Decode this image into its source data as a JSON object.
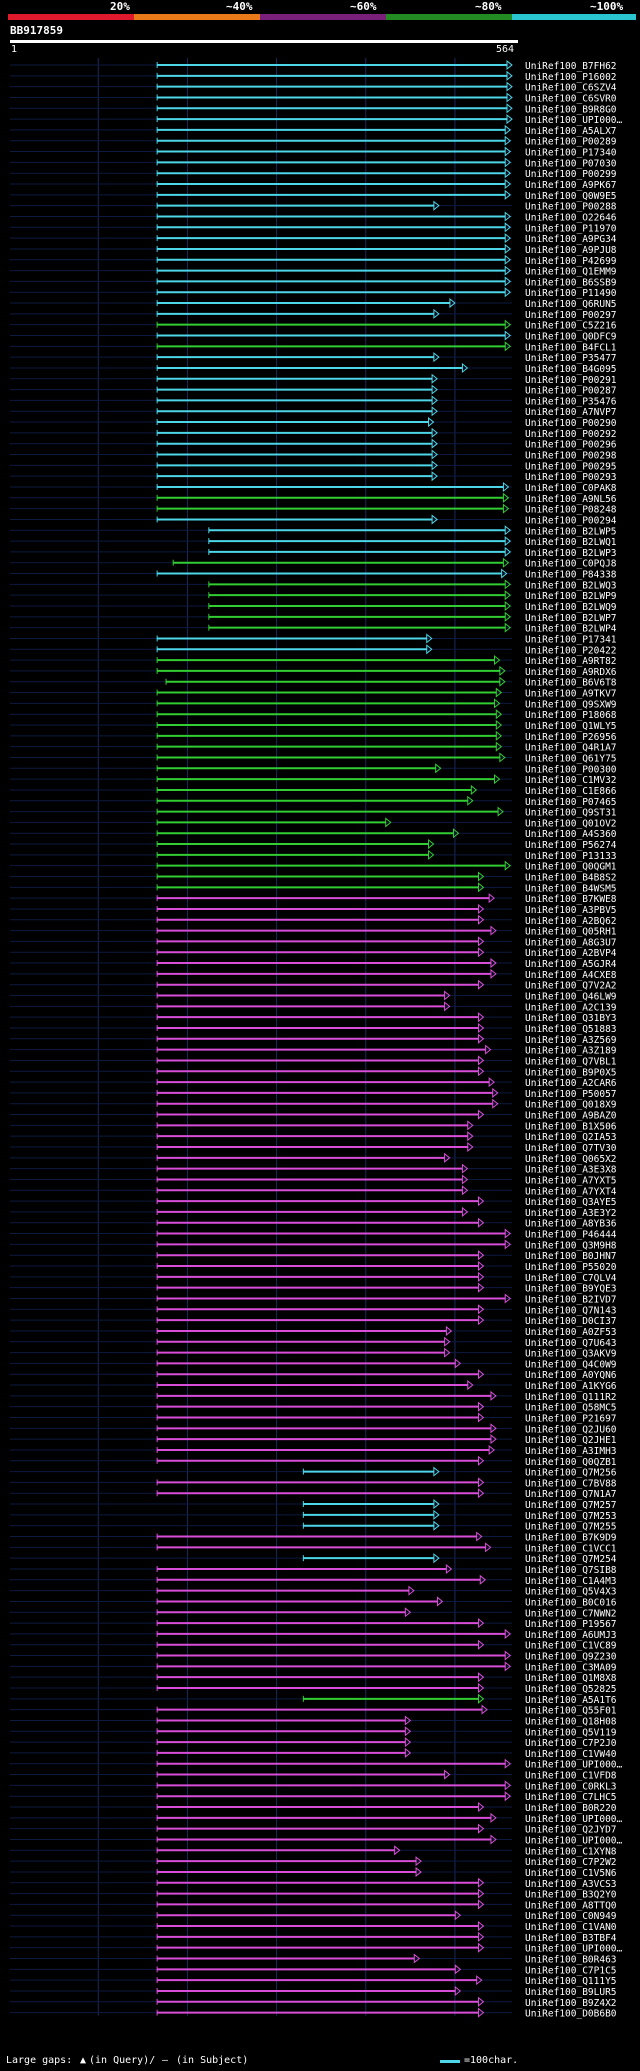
{
  "legend": {
    "labels": [
      "20%",
      "~40%",
      "~60%",
      "~80%",
      "~100%"
    ],
    "colors": [
      "#e0192c",
      "#e97a1a",
      "#7a1f7a",
      "#228b22",
      "#29c6d2"
    ]
  },
  "query": {
    "id": "BB917859",
    "start": "1",
    "end": "564",
    "length": 564
  },
  "hit_colors": {
    "cyan": "#4cd6e8",
    "green": "#32cd32",
    "magenta": "#d94ed9"
  },
  "hits": [
    {
      "id": "UniRef100_B7FH62",
      "start": 166,
      "end": 564,
      "color": "cyan"
    },
    {
      "id": "UniRef100_P16002",
      "start": 166,
      "end": 564,
      "color": "cyan"
    },
    {
      "id": "UniRef100_C6SZV4",
      "start": 166,
      "end": 564,
      "color": "cyan"
    },
    {
      "id": "UniRef100_C6SVR0",
      "start": 166,
      "end": 564,
      "color": "cyan"
    },
    {
      "id": "UniRef100_B9R8G0",
      "start": 166,
      "end": 564,
      "color": "cyan"
    },
    {
      "id": "UniRef100_UPI000…",
      "start": 166,
      "end": 564,
      "color": "cyan"
    },
    {
      "id": "UniRef100_A5ALX7",
      "start": 166,
      "end": 562,
      "color": "cyan"
    },
    {
      "id": "UniRef100_P00289",
      "start": 166,
      "end": 562,
      "color": "cyan"
    },
    {
      "id": "UniRef100_P17340",
      "start": 166,
      "end": 562,
      "color": "cyan"
    },
    {
      "id": "UniRef100_P07030",
      "start": 166,
      "end": 562,
      "color": "cyan"
    },
    {
      "id": "UniRef100_P00299",
      "start": 166,
      "end": 562,
      "color": "cyan"
    },
    {
      "id": "UniRef100_A9PK67",
      "start": 166,
      "end": 562,
      "color": "cyan"
    },
    {
      "id": "UniRef100_Q0W9E5",
      "start": 166,
      "end": 562,
      "color": "cyan"
    },
    {
      "id": "UniRef100_P00288",
      "start": 166,
      "end": 482,
      "color": "cyan"
    },
    {
      "id": "UniRef100_O22646",
      "start": 166,
      "end": 562,
      "color": "cyan"
    },
    {
      "id": "UniRef100_P11970",
      "start": 166,
      "end": 562,
      "color": "cyan"
    },
    {
      "id": "UniRef100_A9PG34",
      "start": 166,
      "end": 562,
      "color": "cyan"
    },
    {
      "id": "UniRef100_A9PJU8",
      "start": 166,
      "end": 562,
      "color": "cyan"
    },
    {
      "id": "UniRef100_P42699",
      "start": 166,
      "end": 562,
      "color": "cyan"
    },
    {
      "id": "UniRef100_Q1EMM9",
      "start": 166,
      "end": 562,
      "color": "cyan"
    },
    {
      "id": "UniRef100_B6SSB9",
      "start": 166,
      "end": 562,
      "color": "cyan"
    },
    {
      "id": "UniRef100_P11490",
      "start": 166,
      "end": 562,
      "color": "cyan"
    },
    {
      "id": "UniRef100_Q6RUN5",
      "start": 166,
      "end": 500,
      "color": "cyan"
    },
    {
      "id": "UniRef100_P00297",
      "start": 166,
      "end": 482,
      "color": "cyan"
    },
    {
      "id": "UniRef100_C5Z216",
      "start": 166,
      "end": 562,
      "color": "green"
    },
    {
      "id": "UniRef100_Q0DFC9",
      "start": 166,
      "end": 562,
      "color": "cyan"
    },
    {
      "id": "UniRef100_B4FCL1",
      "start": 166,
      "end": 562,
      "color": "green"
    },
    {
      "id": "UniRef100_P35477",
      "start": 166,
      "end": 482,
      "color": "cyan"
    },
    {
      "id": "UniRef100_B4G095",
      "start": 166,
      "end": 514,
      "color": "cyan"
    },
    {
      "id": "UniRef100_P00291",
      "start": 166,
      "end": 480,
      "color": "cyan"
    },
    {
      "id": "UniRef100_P00287",
      "start": 166,
      "end": 480,
      "color": "cyan"
    },
    {
      "id": "UniRef100_P35476",
      "start": 166,
      "end": 480,
      "color": "cyan"
    },
    {
      "id": "UniRef100_A7NVP7",
      "start": 166,
      "end": 480,
      "color": "cyan"
    },
    {
      "id": "UniRef100_P00290",
      "start": 166,
      "end": 476,
      "color": "cyan"
    },
    {
      "id": "UniRef100_P00292",
      "start": 166,
      "end": 480,
      "color": "cyan"
    },
    {
      "id": "UniRef100_P00296",
      "start": 166,
      "end": 480,
      "color": "cyan"
    },
    {
      "id": "UniRef100_P00298",
      "start": 166,
      "end": 480,
      "color": "cyan"
    },
    {
      "id": "UniRef100_P00295",
      "start": 166,
      "end": 480,
      "color": "cyan"
    },
    {
      "id": "UniRef100_P00293",
      "start": 166,
      "end": 480,
      "color": "cyan"
    },
    {
      "id": "UniRef100_C0PAK8",
      "start": 166,
      "end": 560,
      "color": "cyan"
    },
    {
      "id": "UniRef100_A9NL56",
      "start": 166,
      "end": 560,
      "color": "green"
    },
    {
      "id": "UniRef100_P08248",
      "start": 166,
      "end": 560,
      "color": "green"
    },
    {
      "id": "UniRef100_P00294",
      "start": 166,
      "end": 480,
      "color": "cyan"
    },
    {
      "id": "UniRef100_B2LWP5",
      "start": 224,
      "end": 562,
      "color": "cyan"
    },
    {
      "id": "UniRef100_B2LWQ1",
      "start": 224,
      "end": 562,
      "color": "cyan"
    },
    {
      "id": "UniRef100_B2LWP3",
      "start": 224,
      "end": 562,
      "color": "cyan"
    },
    {
      "id": "UniRef100_C0PQJ8",
      "start": 184,
      "end": 560,
      "color": "green"
    },
    {
      "id": "UniRef100_P84338",
      "start": 166,
      "end": 558,
      "color": "cyan"
    },
    {
      "id": "UniRef100_B2LWQ3",
      "start": 224,
      "end": 562,
      "color": "green"
    },
    {
      "id": "UniRef100_B2LWP9",
      "start": 224,
      "end": 562,
      "color": "green"
    },
    {
      "id": "UniRef100_B2LWQ9",
      "start": 224,
      "end": 562,
      "color": "green"
    },
    {
      "id": "UniRef100_B2LWP7",
      "start": 224,
      "end": 562,
      "color": "green"
    },
    {
      "id": "UniRef100_B2LWP4",
      "start": 224,
      "end": 562,
      "color": "green"
    },
    {
      "id": "UniRef100_P17341",
      "start": 166,
      "end": 474,
      "color": "cyan"
    },
    {
      "id": "UniRef100_P20422",
      "start": 166,
      "end": 474,
      "color": "cyan"
    },
    {
      "id": "UniRef100_A9RT82",
      "start": 166,
      "end": 550,
      "color": "green"
    },
    {
      "id": "UniRef100_A9RDX6",
      "start": 166,
      "end": 556,
      "color": "green"
    },
    {
      "id": "UniRef100_B6V6T8",
      "start": 176,
      "end": 556,
      "color": "green"
    },
    {
      "id": "UniRef100_A9TKV7",
      "start": 166,
      "end": 552,
      "color": "green"
    },
    {
      "id": "UniRef100_Q9SXW9",
      "start": 166,
      "end": 550,
      "color": "green"
    },
    {
      "id": "UniRef100_P18068",
      "start": 166,
      "end": 552,
      "color": "green"
    },
    {
      "id": "UniRef100_Q1WLY5",
      "start": 166,
      "end": 552,
      "color": "green"
    },
    {
      "id": "UniRef100_P26956",
      "start": 166,
      "end": 552,
      "color": "green"
    },
    {
      "id": "UniRef100_Q4R1A7",
      "start": 166,
      "end": 552,
      "color": "green"
    },
    {
      "id": "UniRef100_Q61Y75",
      "start": 166,
      "end": 556,
      "color": "green"
    },
    {
      "id": "UniRef100_P00300",
      "start": 166,
      "end": 484,
      "color": "green"
    },
    {
      "id": "UniRef100_C1MV32",
      "start": 166,
      "end": 550,
      "color": "green"
    },
    {
      "id": "UniRef100_C1E866",
      "start": 166,
      "end": 524,
      "color": "green"
    },
    {
      "id": "UniRef100_P07465",
      "start": 166,
      "end": 520,
      "color": "green"
    },
    {
      "id": "UniRef100_Q9ST31",
      "start": 166,
      "end": 554,
      "color": "green"
    },
    {
      "id": "UniRef100_Q01OV2",
      "start": 166,
      "end": 428,
      "color": "green"
    },
    {
      "id": "UniRef100_A4S360",
      "start": 166,
      "end": 504,
      "color": "green"
    },
    {
      "id": "UniRef100_P56274",
      "start": 166,
      "end": 476,
      "color": "green"
    },
    {
      "id": "UniRef100_P13133",
      "start": 166,
      "end": 476,
      "color": "green"
    },
    {
      "id": "UniRef100_Q0QGM1",
      "start": 166,
      "end": 562,
      "color": "green"
    },
    {
      "id": "UniRef100_B4B8S2",
      "start": 166,
      "end": 532,
      "color": "green"
    },
    {
      "id": "UniRef100_B4WSM5",
      "start": 166,
      "end": 532,
      "color": "green"
    },
    {
      "id": "UniRef100_B7KWE8",
      "start": 166,
      "end": 544,
      "color": "magenta"
    },
    {
      "id": "UniRef100_A3PBV5",
      "start": 166,
      "end": 532,
      "color": "magenta"
    },
    {
      "id": "UniRef100_A2BQ62",
      "start": 166,
      "end": 532,
      "color": "magenta"
    },
    {
      "id": "UniRef100_Q05RH1",
      "start": 166,
      "end": 546,
      "color": "magenta"
    },
    {
      "id": "UniRef100_A8G3U7",
      "start": 166,
      "end": 532,
      "color": "magenta"
    },
    {
      "id": "UniRef100_A2BVP4",
      "start": 166,
      "end": 532,
      "color": "magenta"
    },
    {
      "id": "UniRef100_A5GJR4",
      "start": 166,
      "end": 546,
      "color": "magenta"
    },
    {
      "id": "UniRef100_A4CXE8",
      "start": 166,
      "end": 546,
      "color": "magenta"
    },
    {
      "id": "UniRef100_Q7V2A2",
      "start": 166,
      "end": 532,
      "color": "magenta"
    },
    {
      "id": "UniRef100_Q46LW9",
      "start": 166,
      "end": 494,
      "color": "magenta"
    },
    {
      "id": "UniRef100_A2C139",
      "start": 166,
      "end": 494,
      "color": "magenta"
    },
    {
      "id": "UniRef100_Q31BY3",
      "start": 166,
      "end": 532,
      "color": "magenta"
    },
    {
      "id": "UniRef100_Q51883",
      "start": 166,
      "end": 532,
      "color": "magenta"
    },
    {
      "id": "UniRef100_A3Z569",
      "start": 166,
      "end": 532,
      "color": "magenta"
    },
    {
      "id": "UniRef100_A3Z189",
      "start": 166,
      "end": 540,
      "color": "magenta"
    },
    {
      "id": "UniRef100_Q7VBL1",
      "start": 166,
      "end": 532,
      "color": "magenta"
    },
    {
      "id": "UniRef100_B9P0X5",
      "start": 166,
      "end": 532,
      "color": "magenta"
    },
    {
      "id": "UniRef100_A2CAR6",
      "start": 166,
      "end": 544,
      "color": "magenta"
    },
    {
      "id": "UniRef100_P50057",
      "start": 166,
      "end": 548,
      "color": "magenta"
    },
    {
      "id": "UniRef100_Q018X9",
      "start": 166,
      "end": 548,
      "color": "magenta"
    },
    {
      "id": "UniRef100_A9BAZ0",
      "start": 166,
      "end": 532,
      "color": "magenta"
    },
    {
      "id": "UniRef100_B1X506",
      "start": 166,
      "end": 520,
      "color": "magenta"
    },
    {
      "id": "UniRef100_Q2IA53",
      "start": 166,
      "end": 520,
      "color": "magenta"
    },
    {
      "id": "UniRef100_Q7TV30",
      "start": 166,
      "end": 520,
      "color": "magenta"
    },
    {
      "id": "UniRef100_Q065X2",
      "start": 166,
      "end": 494,
      "color": "magenta"
    },
    {
      "id": "UniRef100_A3E3X8",
      "start": 166,
      "end": 514,
      "color": "magenta"
    },
    {
      "id": "UniRef100_A7YXT5",
      "start": 166,
      "end": 514,
      "color": "magenta"
    },
    {
      "id": "UniRef100_A7YXT4",
      "start": 166,
      "end": 514,
      "color": "magenta"
    },
    {
      "id": "UniRef100_Q3AYE5",
      "start": 166,
      "end": 532,
      "color": "magenta"
    },
    {
      "id": "UniRef100_A3E3Y2",
      "start": 166,
      "end": 514,
      "color": "magenta"
    },
    {
      "id": "UniRef100_A8YB36",
      "start": 166,
      "end": 532,
      "color": "magenta"
    },
    {
      "id": "UniRef100_P46444",
      "start": 166,
      "end": 562,
      "color": "magenta"
    },
    {
      "id": "UniRef100_Q3M9H8",
      "start": 166,
      "end": 562,
      "color": "magenta"
    },
    {
      "id": "UniRef100_B0JHN7",
      "start": 166,
      "end": 532,
      "color": "magenta"
    },
    {
      "id": "UniRef100_P55020",
      "start": 166,
      "end": 532,
      "color": "magenta"
    },
    {
      "id": "UniRef100_C7QLV4",
      "start": 166,
      "end": 532,
      "color": "magenta"
    },
    {
      "id": "UniRef100_B9YQE3",
      "start": 166,
      "end": 532,
      "color": "magenta"
    },
    {
      "id": "UniRef100_B2IVD7",
      "start": 166,
      "end": 562,
      "color": "magenta"
    },
    {
      "id": "UniRef100_Q7N143",
      "start": 166,
      "end": 532,
      "color": "magenta"
    },
    {
      "id": "UniRef100_D0CI37",
      "start": 166,
      "end": 532,
      "color": "magenta"
    },
    {
      "id": "UniRef100_A0ZF53",
      "start": 166,
      "end": 496,
      "color": "magenta"
    },
    {
      "id": "UniRef100_Q7U643",
      "start": 166,
      "end": 494,
      "color": "magenta"
    },
    {
      "id": "UniRef100_Q3AKV9",
      "start": 166,
      "end": 494,
      "color": "magenta"
    },
    {
      "id": "UniRef100_Q4C0W9",
      "start": 166,
      "end": 506,
      "color": "magenta"
    },
    {
      "id": "UniRef100_A0YQN6",
      "start": 166,
      "end": 532,
      "color": "magenta"
    },
    {
      "id": "UniRef100_A1KYG6",
      "start": 166,
      "end": 520,
      "color": "magenta"
    },
    {
      "id": "UniRef100_Q111R2",
      "start": 166,
      "end": 546,
      "color": "magenta"
    },
    {
      "id": "UniRef100_Q58MC5",
      "start": 166,
      "end": 532,
      "color": "magenta"
    },
    {
      "id": "UniRef100_P21697",
      "start": 166,
      "end": 532,
      "color": "magenta"
    },
    {
      "id": "UniRef100_Q2JU60",
      "start": 166,
      "end": 546,
      "color": "magenta"
    },
    {
      "id": "UniRef100_Q2JHE1",
      "start": 166,
      "end": 546,
      "color": "magenta"
    },
    {
      "id": "UniRef100_A3IMH3",
      "start": 166,
      "end": 544,
      "color": "magenta"
    },
    {
      "id": "UniRef100_Q0QZB1",
      "start": 166,
      "end": 532,
      "color": "magenta"
    },
    {
      "id": "UniRef100_Q7M256",
      "start": 330,
      "end": 482,
      "color": "cyan"
    },
    {
      "id": "UniRef100_C7BV88",
      "start": 166,
      "end": 532,
      "color": "magenta"
    },
    {
      "id": "UniRef100_Q7N1A7",
      "start": 166,
      "end": 532,
      "color": "magenta"
    },
    {
      "id": "UniRef100_Q7M257",
      "start": 330,
      "end": 482,
      "color": "cyan"
    },
    {
      "id": "UniRef100_Q7M253",
      "start": 330,
      "end": 482,
      "color": "cyan"
    },
    {
      "id": "UniRef100_Q7M255",
      "start": 330,
      "end": 482,
      "color": "cyan"
    },
    {
      "id": "UniRef100_B7K9D9",
      "start": 166,
      "end": 530,
      "color": "magenta"
    },
    {
      "id": "UniRef100_C1VCC1",
      "start": 166,
      "end": 540,
      "color": "magenta"
    },
    {
      "id": "UniRef100_Q7M254",
      "start": 330,
      "end": 482,
      "color": "cyan"
    },
    {
      "id": "UniRef100_Q7SIB8",
      "start": 166,
      "end": 496,
      "color": "magenta"
    },
    {
      "id": "UniRef100_C1A4M3",
      "start": 166,
      "end": 534,
      "color": "magenta"
    },
    {
      "id": "UniRef100_Q5V4X3",
      "start": 166,
      "end": 454,
      "color": "magenta"
    },
    {
      "id": "UniRef100_B0C016",
      "start": 166,
      "end": 486,
      "color": "magenta"
    },
    {
      "id": "UniRef100_C7NWN2",
      "start": 166,
      "end": 450,
      "color": "magenta"
    },
    {
      "id": "UniRef100_P19567",
      "start": 166,
      "end": 532,
      "color": "magenta"
    },
    {
      "id": "UniRef100_A6UMJ3",
      "start": 166,
      "end": 562,
      "color": "magenta"
    },
    {
      "id": "UniRef100_C1VC89",
      "start": 166,
      "end": 532,
      "color": "magenta"
    },
    {
      "id": "UniRef100_Q9Z230",
      "start": 166,
      "end": 562,
      "color": "magenta"
    },
    {
      "id": "UniRef100_C3MA09",
      "start": 166,
      "end": 562,
      "color": "magenta"
    },
    {
      "id": "UniRef100_Q1M8X8",
      "start": 166,
      "end": 532,
      "color": "magenta"
    },
    {
      "id": "UniRef100_Q52825",
      "start": 166,
      "end": 532,
      "color": "magenta"
    },
    {
      "id": "UniRef100_A5A1T6",
      "start": 330,
      "end": 532,
      "color": "green"
    },
    {
      "id": "UniRef100_Q55F01",
      "start": 166,
      "end": 536,
      "color": "magenta"
    },
    {
      "id": "UniRef100_Q18H08",
      "start": 166,
      "end": 450,
      "color": "magenta"
    },
    {
      "id": "UniRef100_Q5V119",
      "start": 166,
      "end": 450,
      "color": "magenta"
    },
    {
      "id": "UniRef100_C7P2J0",
      "start": 166,
      "end": 450,
      "color": "magenta"
    },
    {
      "id": "UniRef100_C1VW40",
      "start": 166,
      "end": 450,
      "color": "magenta"
    },
    {
      "id": "UniRef100_UPI000…",
      "start": 166,
      "end": 562,
      "color": "magenta"
    },
    {
      "id": "UniRef100_C1VFD8",
      "start": 166,
      "end": 494,
      "color": "magenta"
    },
    {
      "id": "UniRef100_C0RKL3",
      "start": 166,
      "end": 562,
      "color": "magenta"
    },
    {
      "id": "UniRef100_C7LHC5",
      "start": 166,
      "end": 562,
      "color": "magenta"
    },
    {
      "id": "UniRef100_B0R220",
      "start": 166,
      "end": 532,
      "color": "magenta"
    },
    {
      "id": "UniRef100_UPI000…",
      "start": 166,
      "end": 546,
      "color": "magenta"
    },
    {
      "id": "UniRef100_Q2JYD7",
      "start": 166,
      "end": 532,
      "color": "magenta"
    },
    {
      "id": "UniRef100_UPI000…",
      "start": 166,
      "end": 546,
      "color": "magenta"
    },
    {
      "id": "UniRef100_C1XYN8",
      "start": 166,
      "end": 438,
      "color": "magenta"
    },
    {
      "id": "UniRef100_C7P2W2",
      "start": 166,
      "end": 462,
      "color": "magenta"
    },
    {
      "id": "UniRef100_C1V5N6",
      "start": 166,
      "end": 462,
      "color": "magenta"
    },
    {
      "id": "UniRef100_A3VCS3",
      "start": 166,
      "end": 532,
      "color": "magenta"
    },
    {
      "id": "UniRef100_B3Q2Y0",
      "start": 166,
      "end": 532,
      "color": "magenta"
    },
    {
      "id": "UniRef100_A8TTQ0",
      "start": 166,
      "end": 532,
      "color": "magenta"
    },
    {
      "id": "UniRef100_C0N949",
      "start": 166,
      "end": 506,
      "color": "magenta"
    },
    {
      "id": "UniRef100_C1VAN0",
      "start": 166,
      "end": 532,
      "color": "magenta"
    },
    {
      "id": "UniRef100_B3TBF4",
      "start": 166,
      "end": 532,
      "color": "magenta"
    },
    {
      "id": "UniRef100_UPI000…",
      "start": 166,
      "end": 532,
      "color": "magenta"
    },
    {
      "id": "UniRef100_B0R463",
      "start": 166,
      "end": 460,
      "color": "magenta"
    },
    {
      "id": "UniRef100_C7P1C5",
      "start": 166,
      "end": 506,
      "color": "magenta"
    },
    {
      "id": "UniRef100_Q111Y5",
      "start": 166,
      "end": 530,
      "color": "magenta"
    },
    {
      "id": "UniRef100_B9LUR5",
      "start": 166,
      "end": 506,
      "color": "magenta"
    },
    {
      "id": "UniRef100_B9Z4X2",
      "start": 166,
      "end": 532,
      "color": "magenta"
    },
    {
      "id": "UniRef100_D0B6B0",
      "start": 166,
      "end": 532,
      "color": "magenta"
    }
  ],
  "footer": {
    "large_gaps_label": "Large gaps:",
    "in_query": "(in Query)/",
    "in_subject": "(in Subject)",
    "scale": "=100char."
  }
}
